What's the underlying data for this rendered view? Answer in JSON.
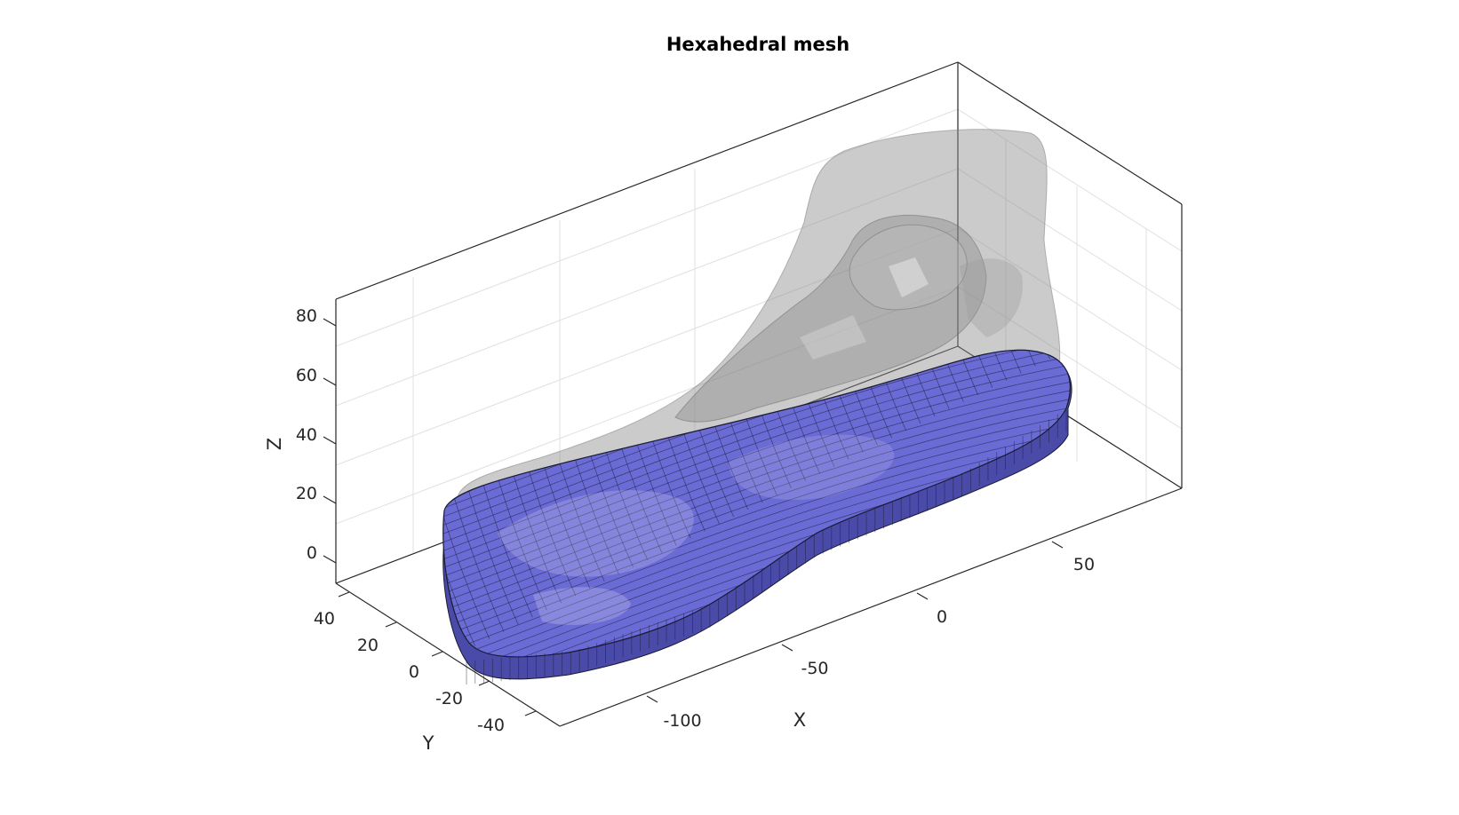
{
  "figure": {
    "title": "Hexahedral mesh",
    "colors": {
      "mesh_face": "#6b6bd6",
      "mesh_edge": "#1a1a33",
      "foot_surface": "#8c8c8c",
      "axes": "#262626",
      "grid": "#e0e0e0",
      "background": "#ffffff"
    }
  },
  "axes": {
    "x_label": "X",
    "y_label": "Y",
    "z_label": "Z",
    "x_ticks": [
      "-100",
      "-50",
      "0",
      "50"
    ],
    "y_ticks": [
      "40",
      "20",
      "0",
      "-20",
      "-40"
    ],
    "z_ticks": [
      "80",
      "60",
      "40",
      "20",
      "0"
    ]
  },
  "chart_data": {
    "type": "3d-surface",
    "title": "Hexahedral mesh",
    "xlabel": "X",
    "ylabel": "Y",
    "zlabel": "Z",
    "xticks": [
      -100,
      -50,
      0,
      50
    ],
    "yticks": [
      40,
      20,
      0,
      -20,
      -40
    ],
    "zticks": [
      80,
      60,
      40,
      20,
      0
    ],
    "grid": true,
    "objects": [
      "translucent-foot-surface",
      "hexahedral-sole-mesh"
    ]
  }
}
